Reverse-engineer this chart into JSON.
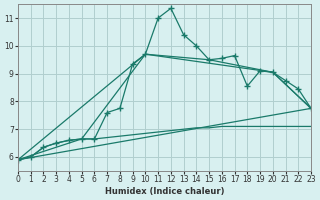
{
  "xlabel": "Humidex (Indice chaleur)",
  "bg_color": "#d8f0f0",
  "grid_color": "#b0cece",
  "line_color": "#1a7a6a",
  "xlim": [
    0,
    23
  ],
  "ylim": [
    5.5,
    11.5
  ],
  "yticks": [
    6,
    7,
    8,
    9,
    10,
    11
  ],
  "xticks": [
    0,
    1,
    2,
    3,
    4,
    5,
    6,
    7,
    8,
    9,
    10,
    11,
    12,
    13,
    14,
    15,
    16,
    17,
    18,
    19,
    20,
    21,
    22,
    23
  ],
  "curve1_x": [
    0,
    1,
    2,
    3,
    4,
    5,
    6,
    7,
    8,
    9,
    10,
    11,
    12,
    13,
    14,
    15,
    16,
    17,
    18,
    19,
    20,
    21,
    22,
    23
  ],
  "curve1_y": [
    5.9,
    6.0,
    6.35,
    6.5,
    6.6,
    6.65,
    6.65,
    7.6,
    7.75,
    9.35,
    9.7,
    11.0,
    11.35,
    10.4,
    10.0,
    9.5,
    9.55,
    9.65,
    8.55,
    9.1,
    9.05,
    8.75,
    8.45,
    7.75
  ],
  "curve2_x": [
    0,
    5,
    10,
    15,
    20,
    23
  ],
  "curve2_y": [
    5.9,
    6.65,
    9.7,
    9.5,
    9.05,
    7.75
  ],
  "curve3_x": [
    0,
    23
  ],
  "curve3_y": [
    5.9,
    7.75
  ],
  "curve4_x": [
    0,
    10,
    20,
    23
  ],
  "curve4_y": [
    5.9,
    9.7,
    9.05,
    7.75
  ],
  "flat_x": [
    0,
    1,
    2,
    3,
    4,
    5,
    6,
    7,
    8,
    9,
    10,
    11,
    12,
    13,
    14,
    15,
    16,
    17,
    18,
    19,
    20,
    21,
    22,
    23
  ],
  "flat_y": [
    5.9,
    6.0,
    6.35,
    6.5,
    6.6,
    6.65,
    6.65,
    6.7,
    6.75,
    6.8,
    6.85,
    6.9,
    6.95,
    7.0,
    7.05,
    7.05,
    7.1,
    7.1,
    7.1,
    7.1,
    7.1,
    7.1,
    7.1,
    7.1
  ]
}
